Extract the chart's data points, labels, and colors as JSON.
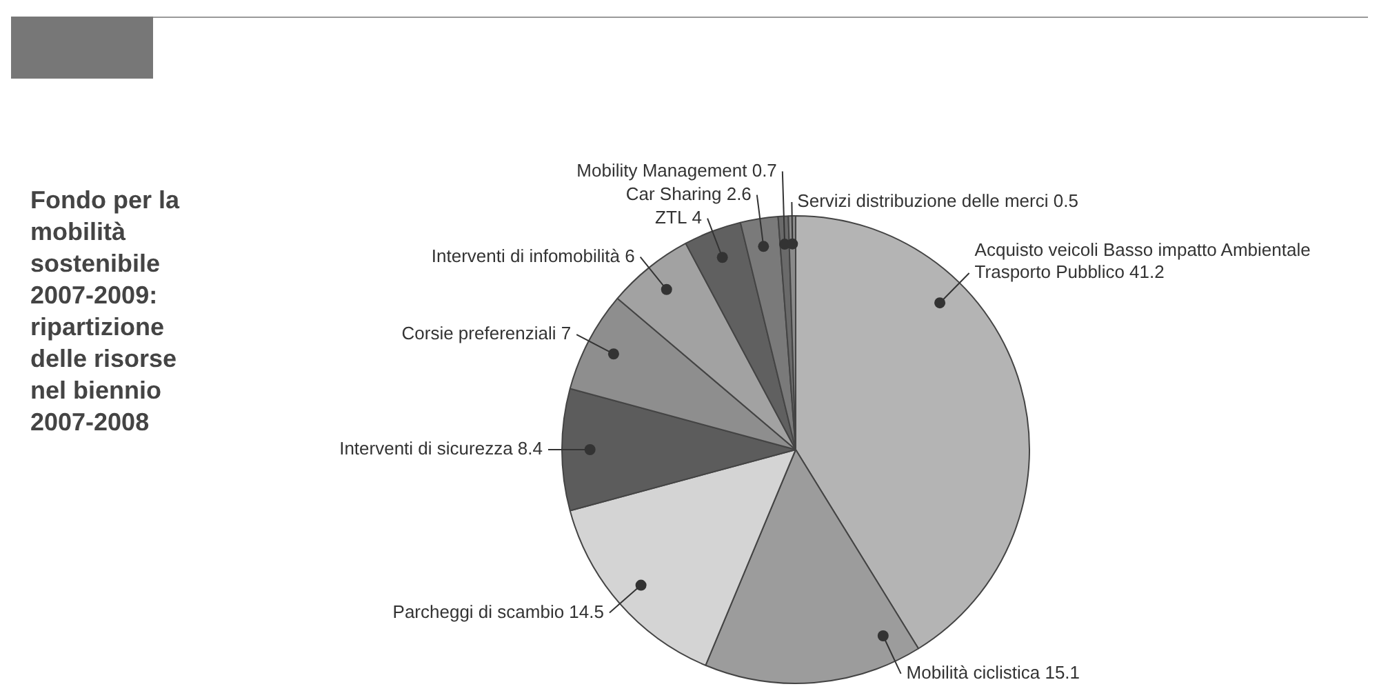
{
  "chart_data": {
    "type": "pie",
    "title": "Fondo per la mobilità sostenibile 2007-2009: ripartizione delle risorse nel biennio 2007-2008",
    "categories": [
      "Acquisto veicoli Basso impatto Ambientale\nTrasporto Pubblico",
      "Mobilità ciclistica",
      "Parcheggi di scambio",
      "Interventi di sicurezza",
      "Corsie preferenziali",
      "Interventi di infomobilità",
      "ZTL",
      "Car Sharing",
      "Mobility Management",
      "Servizi distribuzione delle merci"
    ],
    "values": [
      41.2,
      15.1,
      14.5,
      8.4,
      7,
      6,
      4,
      2.6,
      0.7,
      0.5
    ],
    "colors": [
      "#b4b4b4",
      "#9c9c9c",
      "#d4d4d4",
      "#5c5c5c",
      "#8e8e8e",
      "#a2a2a2",
      "#606060",
      "#7a7a7a",
      "#6a6a6a",
      "#8a8a8a"
    ],
    "data_labels": true,
    "legend": false
  }
}
